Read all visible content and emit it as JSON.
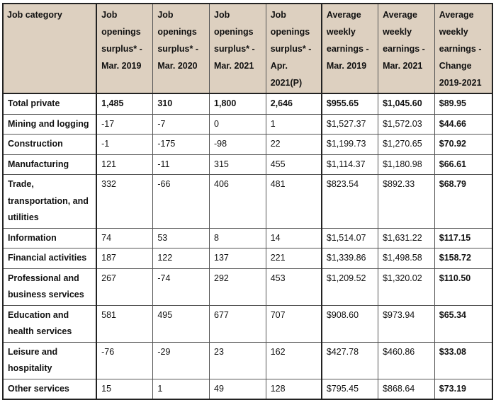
{
  "headers": [
    "Job category",
    "Job openings surplus* - Mar. 2019",
    "Job openings surplus* - Mar. 2020",
    "Job openings surplus* - Mar. 2021",
    "Job openings surplus* - Apr. 2021(P)",
    "Average weekly earnings - Mar. 2019",
    "Average weekly earnings - Mar. 2021",
    "Average weekly earnings - Change 2019-2021"
  ],
  "rows": [
    {
      "category": "Total private",
      "s2019": "1,485",
      "s2020": "310",
      "s2021": "1,800",
      "sApr": "2,646",
      "e2019": "$955.65",
      "e2021": "$1,045.60",
      "change": "$89.95"
    },
    {
      "category": "Mining and logging",
      "s2019": "-17",
      "s2020": "-7",
      "s2021": "0",
      "sApr": "1",
      "e2019": "$1,527.37",
      "e2021": "$1,572.03",
      "change": "$44.66"
    },
    {
      "category": "Construction",
      "s2019": "-1",
      "s2020": "-175",
      "s2021": "-98",
      "sApr": "22",
      "e2019": "$1,199.73",
      "e2021": "$1,270.65",
      "change": "$70.92"
    },
    {
      "category": "Manufacturing",
      "s2019": "121",
      "s2020": "-11",
      "s2021": "315",
      "sApr": "455",
      "e2019": "$1,114.37",
      "e2021": "$1,180.98",
      "change": "$66.61"
    },
    {
      "category": "Trade, transportation, and utilities",
      "s2019": "332",
      "s2020": "-66",
      "s2021": "406",
      "sApr": "481",
      "e2019": "$823.54",
      "e2021": "$892.33",
      "change": "$68.79"
    },
    {
      "category": "Information",
      "s2019": "74",
      "s2020": "53",
      "s2021": "8",
      "sApr": "14",
      "e2019": "$1,514.07",
      "e2021": "$1,631.22",
      "change": "$117.15"
    },
    {
      "category": "Financial activities",
      "s2019": "187",
      "s2020": "122",
      "s2021": "137",
      "sApr": "221",
      "e2019": "$1,339.86",
      "e2021": "$1,498.58",
      "change": "$158.72"
    },
    {
      "category": "Professional and business services",
      "s2019": "267",
      "s2020": "-74",
      "s2021": "292",
      "sApr": "453",
      "e2019": "$1,209.52",
      "e2021": "$1,320.02",
      "change": "$110.50"
    },
    {
      "category": "Education and health services",
      "s2019": "581",
      "s2020": "495",
      "s2021": "677",
      "sApr": "707",
      "e2019": "$908.60",
      "e2021": "$973.94",
      "change": "$65.34"
    },
    {
      "category": "Leisure and hospitality",
      "s2019": "-76",
      "s2020": "-29",
      "s2021": "23",
      "sApr": "162",
      "e2019": "$427.78",
      "e2021": "$460.86",
      "change": "$33.08"
    },
    {
      "category": "Other services",
      "s2019": "15",
      "s2020": "1",
      "s2021": "49",
      "sApr": "128",
      "e2019": "$795.45",
      "e2021": "$868.64",
      "change": "$73.19"
    }
  ],
  "colors": {
    "header_bg": "#ddd0c0",
    "border": "#222222"
  }
}
